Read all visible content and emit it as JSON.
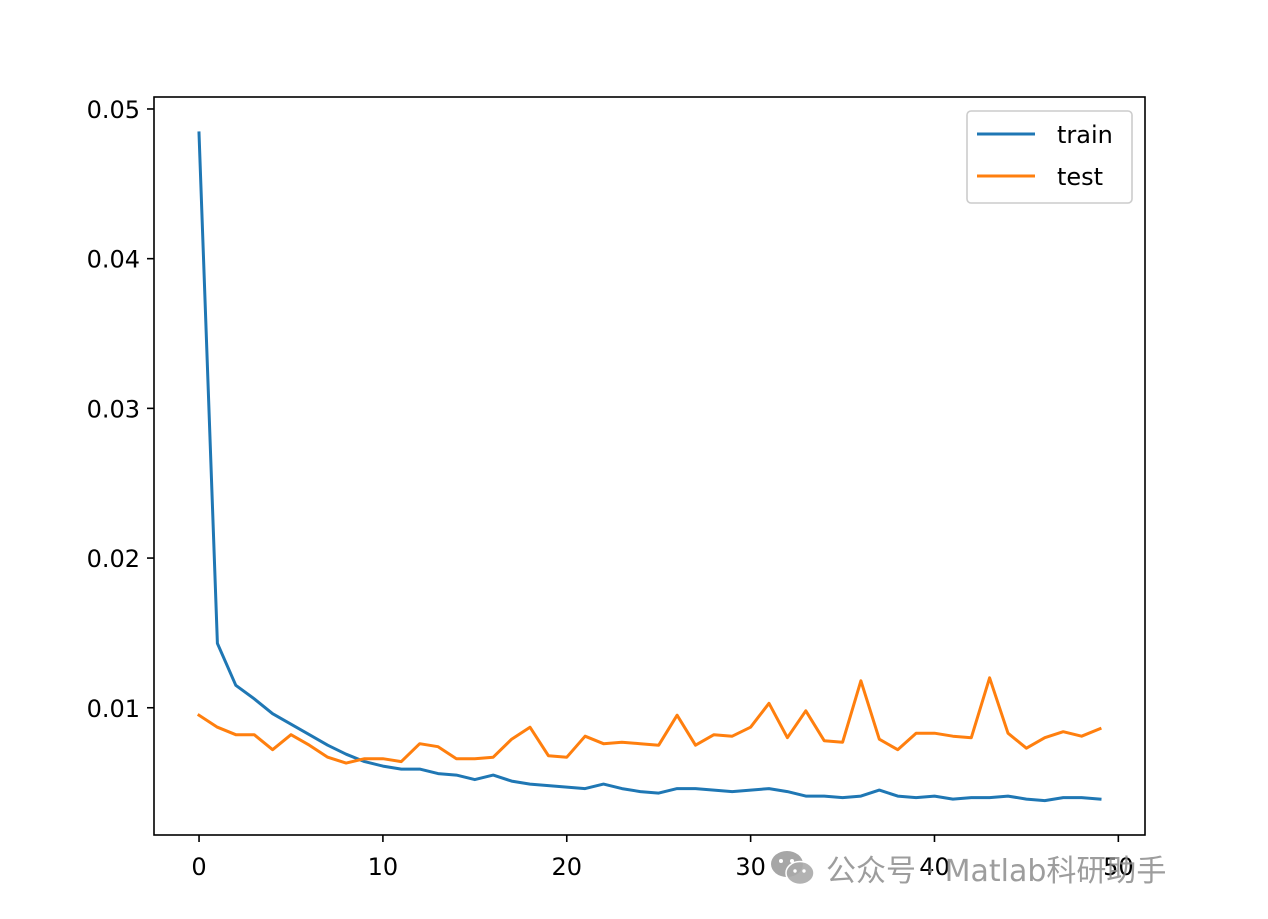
{
  "chart_data": {
    "type": "line",
    "title": "",
    "xlabel": "",
    "ylabel": "",
    "xlim": [
      -2.45,
      51.45
    ],
    "ylim": [
      0.0015,
      0.0508
    ],
    "xticks": [
      0,
      10,
      20,
      30,
      40,
      50
    ],
    "xtick_labels": [
      "0",
      "10",
      "20",
      "30",
      "40",
      "50"
    ],
    "yticks": [
      0.01,
      0.02,
      0.03,
      0.04,
      0.05
    ],
    "ytick_labels": [
      "0.01",
      "0.02",
      "0.03",
      "0.04",
      "0.05"
    ],
    "grid": false,
    "legend_position": "upper-right",
    "x": [
      0,
      1,
      2,
      3,
      4,
      5,
      6,
      7,
      8,
      9,
      10,
      11,
      12,
      13,
      14,
      15,
      16,
      17,
      18,
      19,
      20,
      21,
      22,
      23,
      24,
      25,
      26,
      27,
      28,
      29,
      30,
      31,
      32,
      33,
      34,
      35,
      36,
      37,
      38,
      39,
      40,
      41,
      42,
      43,
      44,
      45,
      46,
      47,
      48,
      49
    ],
    "series": [
      {
        "name": "train",
        "color": "#1f77b4",
        "values": [
          0.0484,
          0.0143,
          0.0115,
          0.0106,
          0.0096,
          0.0089,
          0.0082,
          0.0075,
          0.0069,
          0.0064,
          0.0061,
          0.0059,
          0.0059,
          0.0056,
          0.0055,
          0.0052,
          0.0055,
          0.0051,
          0.0049,
          0.0048,
          0.0047,
          0.0046,
          0.0049,
          0.0046,
          0.0044,
          0.0043,
          0.0046,
          0.0046,
          0.0045,
          0.0044,
          0.0045,
          0.0046,
          0.0044,
          0.0041,
          0.0041,
          0.004,
          0.0041,
          0.0045,
          0.0041,
          0.004,
          0.0041,
          0.0039,
          0.004,
          0.004,
          0.0041,
          0.0039,
          0.0038,
          0.004,
          0.004,
          0.0039
        ]
      },
      {
        "name": "test",
        "color": "#ff7f0e",
        "values": [
          0.0095,
          0.0087,
          0.0082,
          0.0082,
          0.0072,
          0.0082,
          0.0075,
          0.0067,
          0.0063,
          0.0066,
          0.0066,
          0.0064,
          0.0076,
          0.0074,
          0.0066,
          0.0066,
          0.0067,
          0.0079,
          0.0087,
          0.0068,
          0.0067,
          0.0081,
          0.0076,
          0.0077,
          0.0076,
          0.0075,
          0.0095,
          0.0075,
          0.0082,
          0.0081,
          0.0087,
          0.0103,
          0.008,
          0.0098,
          0.0078,
          0.0077,
          0.0118,
          0.0079,
          0.0072,
          0.0083,
          0.0083,
          0.0081,
          0.008,
          0.012,
          0.0083,
          0.0073,
          0.008,
          0.0084,
          0.0081,
          0.0086
        ]
      }
    ]
  },
  "watermark": {
    "icon": "wechat-icon",
    "text": "公众号 · Matlab科研助手",
    "color": "#8c8c8c"
  }
}
